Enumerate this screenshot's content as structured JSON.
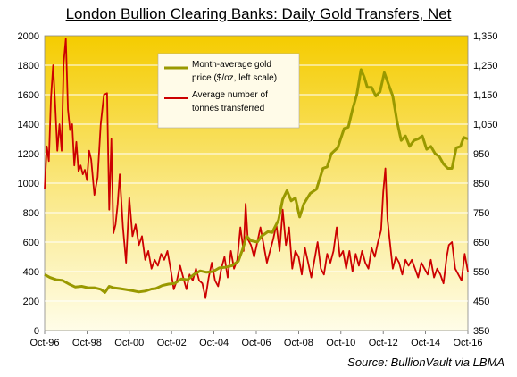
{
  "chart_data": {
    "type": "line",
    "title": "London Bullion Clearing Banks: Daily Gold Transfers,  Net",
    "source": "Source: BullionVault via LBMA",
    "x_tick_labels": [
      "Oct-96",
      "Oct-98",
      "Oct-00",
      "Oct-02",
      "Oct-04",
      "Oct-06",
      "Oct-08",
      "Oct-10",
      "Oct-12",
      "Oct-14",
      "Oct-16"
    ],
    "x_range": [
      1996.75,
      2016.75
    ],
    "left_axis": {
      "ylim": [
        0,
        2000
      ],
      "ticks": [
        0,
        200,
        400,
        600,
        800,
        1000,
        1200,
        1400,
        1600,
        1800,
        2000
      ],
      "labels": [
        "0",
        "200",
        "400",
        "600",
        "800",
        "1000",
        "1200",
        "1400",
        "1600",
        "1800",
        "2000"
      ]
    },
    "right_axis": {
      "ylim": [
        350,
        1350
      ],
      "ticks": [
        350,
        450,
        550,
        650,
        750,
        850,
        950,
        1050,
        1150,
        1250,
        1350
      ],
      "labels": [
        "350",
        "450",
        "550",
        "650",
        "750",
        "850",
        "950",
        "1,050",
        "1,150",
        "1,250",
        "1,350"
      ]
    },
    "grid": true,
    "legend_placement": "top-center",
    "series": [
      {
        "name": "Month-average gold price ($/oz, left scale)",
        "color": "#999900",
        "axis": "left",
        "points": [
          [
            1996.75,
            380
          ],
          [
            1997.0,
            360
          ],
          [
            1997.3,
            345
          ],
          [
            1997.6,
            340
          ],
          [
            1997.9,
            315
          ],
          [
            1998.2,
            295
          ],
          [
            1998.5,
            300
          ],
          [
            1998.8,
            290
          ],
          [
            1999.1,
            290
          ],
          [
            1999.4,
            280
          ],
          [
            1999.6,
            258
          ],
          [
            1999.8,
            300
          ],
          [
            2000.0,
            290
          ],
          [
            2000.3,
            285
          ],
          [
            2000.6,
            278
          ],
          [
            2000.9,
            270
          ],
          [
            2001.2,
            262
          ],
          [
            2001.5,
            268
          ],
          [
            2001.8,
            282
          ],
          [
            2002.0,
            285
          ],
          [
            2002.3,
            305
          ],
          [
            2002.6,
            315
          ],
          [
            2002.9,
            320
          ],
          [
            2003.2,
            350
          ],
          [
            2003.5,
            345
          ],
          [
            2003.8,
            380
          ],
          [
            2004.1,
            405
          ],
          [
            2004.4,
            395
          ],
          [
            2004.7,
            400
          ],
          [
            2005.0,
            425
          ],
          [
            2005.3,
            430
          ],
          [
            2005.6,
            440
          ],
          [
            2005.9,
            470
          ],
          [
            2006.1,
            550
          ],
          [
            2006.3,
            640
          ],
          [
            2006.5,
            610
          ],
          [
            2006.8,
            600
          ],
          [
            2007.0,
            640
          ],
          [
            2007.3,
            670
          ],
          [
            2007.5,
            665
          ],
          [
            2007.8,
            750
          ],
          [
            2008.0,
            890
          ],
          [
            2008.2,
            950
          ],
          [
            2008.4,
            880
          ],
          [
            2008.6,
            900
          ],
          [
            2008.8,
            770
          ],
          [
            2009.0,
            860
          ],
          [
            2009.3,
            930
          ],
          [
            2009.6,
            960
          ],
          [
            2009.9,
            1100
          ],
          [
            2010.1,
            1110
          ],
          [
            2010.3,
            1200
          ],
          [
            2010.6,
            1240
          ],
          [
            2010.9,
            1370
          ],
          [
            2011.1,
            1380
          ],
          [
            2011.3,
            1500
          ],
          [
            2011.5,
            1600
          ],
          [
            2011.7,
            1770
          ],
          [
            2011.85,
            1720
          ],
          [
            2012.0,
            1650
          ],
          [
            2012.2,
            1650
          ],
          [
            2012.4,
            1590
          ],
          [
            2012.6,
            1620
          ],
          [
            2012.8,
            1750
          ],
          [
            2013.0,
            1670
          ],
          [
            2013.2,
            1590
          ],
          [
            2013.4,
            1420
          ],
          [
            2013.6,
            1290
          ],
          [
            2013.8,
            1320
          ],
          [
            2014.0,
            1250
          ],
          [
            2014.2,
            1290
          ],
          [
            2014.4,
            1300
          ],
          [
            2014.6,
            1320
          ],
          [
            2014.8,
            1230
          ],
          [
            2015.0,
            1250
          ],
          [
            2015.2,
            1200
          ],
          [
            2015.4,
            1180
          ],
          [
            2015.6,
            1130
          ],
          [
            2015.8,
            1100
          ],
          [
            2016.0,
            1100
          ],
          [
            2016.2,
            1240
          ],
          [
            2016.4,
            1250
          ],
          [
            2016.55,
            1310
          ],
          [
            2016.75,
            1300
          ]
        ]
      },
      {
        "name": "Average number of tonnes transferred",
        "color": "#cc0000",
        "axis": "right",
        "points": [
          [
            1996.75,
            830
          ],
          [
            1996.85,
            975
          ],
          [
            1996.95,
            925
          ],
          [
            1997.05,
            1140
          ],
          [
            1997.15,
            1250
          ],
          [
            1997.25,
            1110
          ],
          [
            1997.35,
            960
          ],
          [
            1997.45,
            1050
          ],
          [
            1997.55,
            960
          ],
          [
            1997.65,
            1260
          ],
          [
            1997.75,
            1340
          ],
          [
            1997.85,
            1100
          ],
          [
            1997.95,
            1030
          ],
          [
            1998.05,
            1050
          ],
          [
            1998.15,
            910
          ],
          [
            1998.25,
            990
          ],
          [
            1998.35,
            890
          ],
          [
            1998.45,
            910
          ],
          [
            1998.55,
            880
          ],
          [
            1998.65,
            895
          ],
          [
            1998.75,
            860
          ],
          [
            1998.85,
            960
          ],
          [
            1998.95,
            930
          ],
          [
            1999.1,
            810
          ],
          [
            1999.25,
            870
          ],
          [
            1999.4,
            1050
          ],
          [
            1999.55,
            1150
          ],
          [
            1999.7,
            1155
          ],
          [
            1999.8,
            760
          ],
          [
            1999.9,
            1000
          ],
          [
            2000.0,
            680
          ],
          [
            2000.1,
            710
          ],
          [
            2000.2,
            780
          ],
          [
            2000.3,
            880
          ],
          [
            2000.45,
            700
          ],
          [
            2000.6,
            580
          ],
          [
            2000.75,
            800
          ],
          [
            2000.9,
            670
          ],
          [
            2001.05,
            710
          ],
          [
            2001.2,
            640
          ],
          [
            2001.35,
            670
          ],
          [
            2001.5,
            590
          ],
          [
            2001.65,
            620
          ],
          [
            2001.8,
            560
          ],
          [
            2001.95,
            590
          ],
          [
            2002.1,
            570
          ],
          [
            2002.25,
            610
          ],
          [
            2002.4,
            590
          ],
          [
            2002.55,
            620
          ],
          [
            2002.7,
            560
          ],
          [
            2002.85,
            490
          ],
          [
            2003.0,
            520
          ],
          [
            2003.15,
            570
          ],
          [
            2003.3,
            530
          ],
          [
            2003.45,
            490
          ],
          [
            2003.6,
            540
          ],
          [
            2003.75,
            520
          ],
          [
            2003.9,
            560
          ],
          [
            2004.05,
            520
          ],
          [
            2004.2,
            510
          ],
          [
            2004.35,
            460
          ],
          [
            2004.5,
            530
          ],
          [
            2004.65,
            580
          ],
          [
            2004.8,
            520
          ],
          [
            2004.95,
            500
          ],
          [
            2005.1,
            560
          ],
          [
            2005.25,
            600
          ],
          [
            2005.4,
            530
          ],
          [
            2005.55,
            620
          ],
          [
            2005.7,
            560
          ],
          [
            2005.85,
            590
          ],
          [
            2006.0,
            700
          ],
          [
            2006.15,
            620
          ],
          [
            2006.25,
            780
          ],
          [
            2006.35,
            660
          ],
          [
            2006.5,
            640
          ],
          [
            2006.65,
            600
          ],
          [
            2006.8,
            650
          ],
          [
            2006.95,
            700
          ],
          [
            2007.1,
            640
          ],
          [
            2007.25,
            580
          ],
          [
            2007.4,
            620
          ],
          [
            2007.55,
            660
          ],
          [
            2007.7,
            710
          ],
          [
            2007.85,
            620
          ],
          [
            2008.0,
            760
          ],
          [
            2008.15,
            640
          ],
          [
            2008.3,
            700
          ],
          [
            2008.45,
            560
          ],
          [
            2008.6,
            620
          ],
          [
            2008.75,
            600
          ],
          [
            2008.9,
            540
          ],
          [
            2009.05,
            630
          ],
          [
            2009.2,
            580
          ],
          [
            2009.35,
            530
          ],
          [
            2009.5,
            590
          ],
          [
            2009.65,
            650
          ],
          [
            2009.8,
            560
          ],
          [
            2009.95,
            540
          ],
          [
            2010.1,
            610
          ],
          [
            2010.25,
            580
          ],
          [
            2010.4,
            620
          ],
          [
            2010.55,
            700
          ],
          [
            2010.7,
            600
          ],
          [
            2010.85,
            620
          ],
          [
            2011.0,
            560
          ],
          [
            2011.15,
            620
          ],
          [
            2011.3,
            550
          ],
          [
            2011.45,
            610
          ],
          [
            2011.6,
            570
          ],
          [
            2011.75,
            620
          ],
          [
            2011.9,
            580
          ],
          [
            2012.05,
            560
          ],
          [
            2012.2,
            630
          ],
          [
            2012.35,
            600
          ],
          [
            2012.5,
            650
          ],
          [
            2012.65,
            690
          ],
          [
            2012.75,
            820
          ],
          [
            2012.85,
            900
          ],
          [
            2012.95,
            730
          ],
          [
            2013.05,
            660
          ],
          [
            2013.2,
            560
          ],
          [
            2013.35,
            600
          ],
          [
            2013.5,
            580
          ],
          [
            2013.65,
            540
          ],
          [
            2013.8,
            590
          ],
          [
            2013.95,
            570
          ],
          [
            2014.1,
            590
          ],
          [
            2014.25,
            560
          ],
          [
            2014.4,
            530
          ],
          [
            2014.55,
            580
          ],
          [
            2014.7,
            560
          ],
          [
            2014.85,
            540
          ],
          [
            2015.0,
            590
          ],
          [
            2015.15,
            530
          ],
          [
            2015.3,
            560
          ],
          [
            2015.45,
            540
          ],
          [
            2015.6,
            510
          ],
          [
            2015.75,
            600
          ],
          [
            2015.85,
            640
          ],
          [
            2016.0,
            650
          ],
          [
            2016.15,
            560
          ],
          [
            2016.3,
            540
          ],
          [
            2016.45,
            520
          ],
          [
            2016.6,
            610
          ],
          [
            2016.75,
            550
          ]
        ]
      }
    ]
  }
}
